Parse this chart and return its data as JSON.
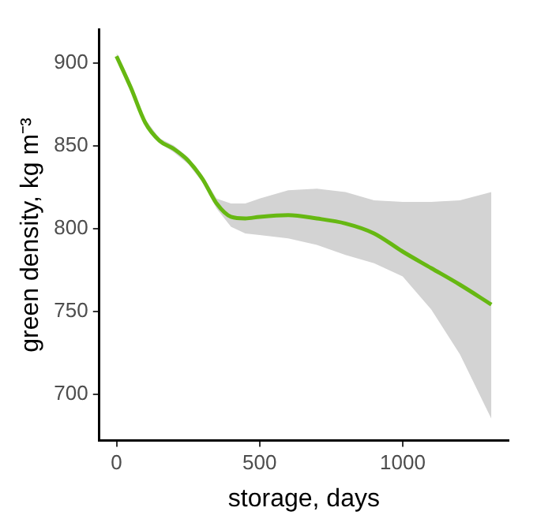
{
  "chart_data": {
    "type": "line",
    "xlabel": "storage, days",
    "ylabel": "green density, kg m⁻³",
    "x": [
      0,
      50,
      100,
      150,
      200,
      250,
      300,
      350,
      400,
      450,
      500,
      600,
      700,
      800,
      900,
      1000,
      1100,
      1200,
      1310
    ],
    "series": [
      {
        "color": "#66b812",
        "values": [
          904,
          885,
          864,
          853,
          848,
          841,
          830,
          815,
          807,
          806,
          807,
          808,
          806,
          803,
          797,
          786,
          776,
          766,
          754
        ],
        "lower": [
          902,
          883,
          862,
          851.5,
          846,
          839,
          828,
          812,
          801,
          797,
          796,
          794,
          790,
          784,
          779,
          771,
          751,
          724,
          685
        ],
        "upper": [
          906,
          887,
          866,
          854.5,
          850,
          843,
          832,
          818,
          815,
          815,
          818,
          823,
          824,
          822,
          817,
          816,
          816,
          817,
          822
        ]
      }
    ],
    "xlim": [
      -60,
      1370
    ],
    "ylim": [
      672,
      920
    ],
    "xticks": [
      0,
      500,
      1000
    ],
    "yticks": [
      700,
      750,
      800,
      850,
      900
    ],
    "grid": false,
    "legend": false,
    "marker": "none",
    "line_style": "solid"
  }
}
